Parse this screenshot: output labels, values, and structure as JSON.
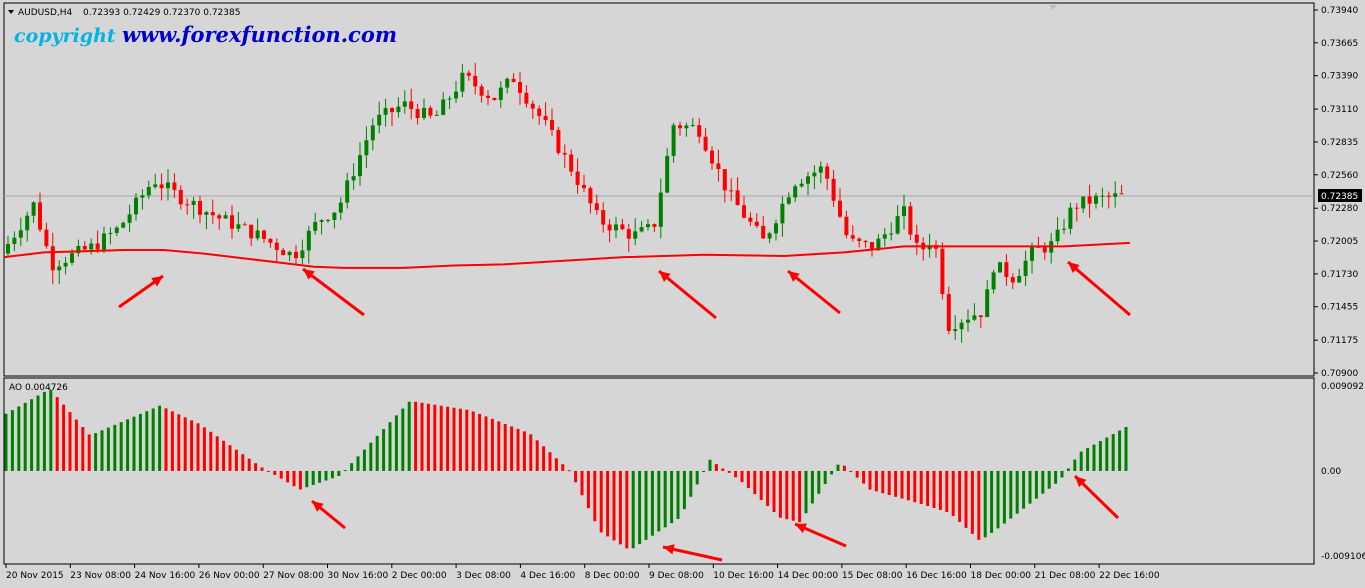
{
  "header": {
    "symbol": "AUDUSD,H4",
    "ohlc": "0.72393 0.72429 0.72370 0.72385",
    "watermark_left": "copyright",
    "watermark_right": "www.forexfunction.com"
  },
  "colors": {
    "background": "#d6d6d6",
    "bull": "#008000",
    "bear": "#ff0000",
    "ma_line": "#ff0000",
    "arrow": "#ff0000",
    "watermark": "#0000cc",
    "watermark_left": "#00b4e6",
    "current_price_box": "#000000"
  },
  "chart_data": [
    {
      "type": "candlestick",
      "title": "AUDUSD,H4",
      "current_price": 0.72385,
      "current_price_label": "0.72385",
      "y_ticks": [
        "0.73940",
        "0.73665",
        "0.73390",
        "0.73110",
        "0.72835",
        "0.72560",
        "0.72280",
        "0.72005",
        "0.71730",
        "0.71455",
        "0.71175",
        "0.70900"
      ],
      "ylim": [
        0.709,
        0.7394
      ],
      "ma_points": [
        [
          0,
          0.7187
        ],
        [
          40,
          0.7191
        ],
        [
          80,
          0.7192
        ],
        [
          120,
          0.7193
        ],
        [
          160,
          0.7193
        ],
        [
          200,
          0.719
        ],
        [
          240,
          0.7186
        ],
        [
          280,
          0.7182
        ],
        [
          310,
          0.7179
        ],
        [
          340,
          0.7178
        ],
        [
          400,
          0.7178
        ],
        [
          450,
          0.718
        ],
        [
          500,
          0.7181
        ],
        [
          560,
          0.7184
        ],
        [
          620,
          0.7187
        ],
        [
          700,
          0.7189
        ],
        [
          780,
          0.7188
        ],
        [
          840,
          0.7191
        ],
        [
          900,
          0.7196
        ],
        [
          960,
          0.7196
        ],
        [
          1060,
          0.7196
        ],
        [
          1126,
          0.7199
        ]
      ],
      "arrow_targets": [
        {
          "from": [
            119,
            307
          ],
          "to": [
            163,
            276
          ]
        },
        {
          "from": [
            364,
            315
          ],
          "to": [
            303,
            269
          ]
        },
        {
          "from": [
            716,
            318
          ],
          "to": [
            659,
            271
          ]
        },
        {
          "from": [
            840,
            313
          ],
          "to": [
            788,
            271
          ]
        },
        {
          "from": [
            1130,
            315
          ],
          "to": [
            1068,
            262
          ]
        }
      ]
    },
    {
      "type": "bar",
      "title": "AO 0.004726",
      "y_ticks": [
        "0.009092",
        "0.00",
        "-0.009106"
      ],
      "ylim": [
        -0.009106,
        0.009092
      ],
      "arrow_targets": [
        {
          "from": [
            345,
            528
          ],
          "to": [
            312,
            501
          ]
        },
        {
          "from": [
            722,
            560
          ],
          "to": [
            663,
            547
          ]
        },
        {
          "from": [
            846,
            546
          ],
          "to": [
            795,
            524
          ]
        },
        {
          "from": [
            1118,
            518
          ],
          "to": [
            1075,
            476
          ]
        }
      ]
    }
  ],
  "x_ticks": [
    "20 Nov 2015",
    "23 Nov 08:00",
    "24 Nov 16:00",
    "26 Nov 00:00",
    "27 Nov 08:00",
    "30 Nov 16:00",
    "2 Dec 00:00",
    "3 Dec 08:00",
    "4 Dec 16:00",
    "8 Dec 00:00",
    "9 Dec 08:00",
    "10 Dec 16:00",
    "14 Dec 00:00",
    "15 Dec 08:00",
    "16 Dec 16:00",
    "18 Dec 00:00",
    "21 Dec 08:00",
    "22 Dec 16:00"
  ]
}
